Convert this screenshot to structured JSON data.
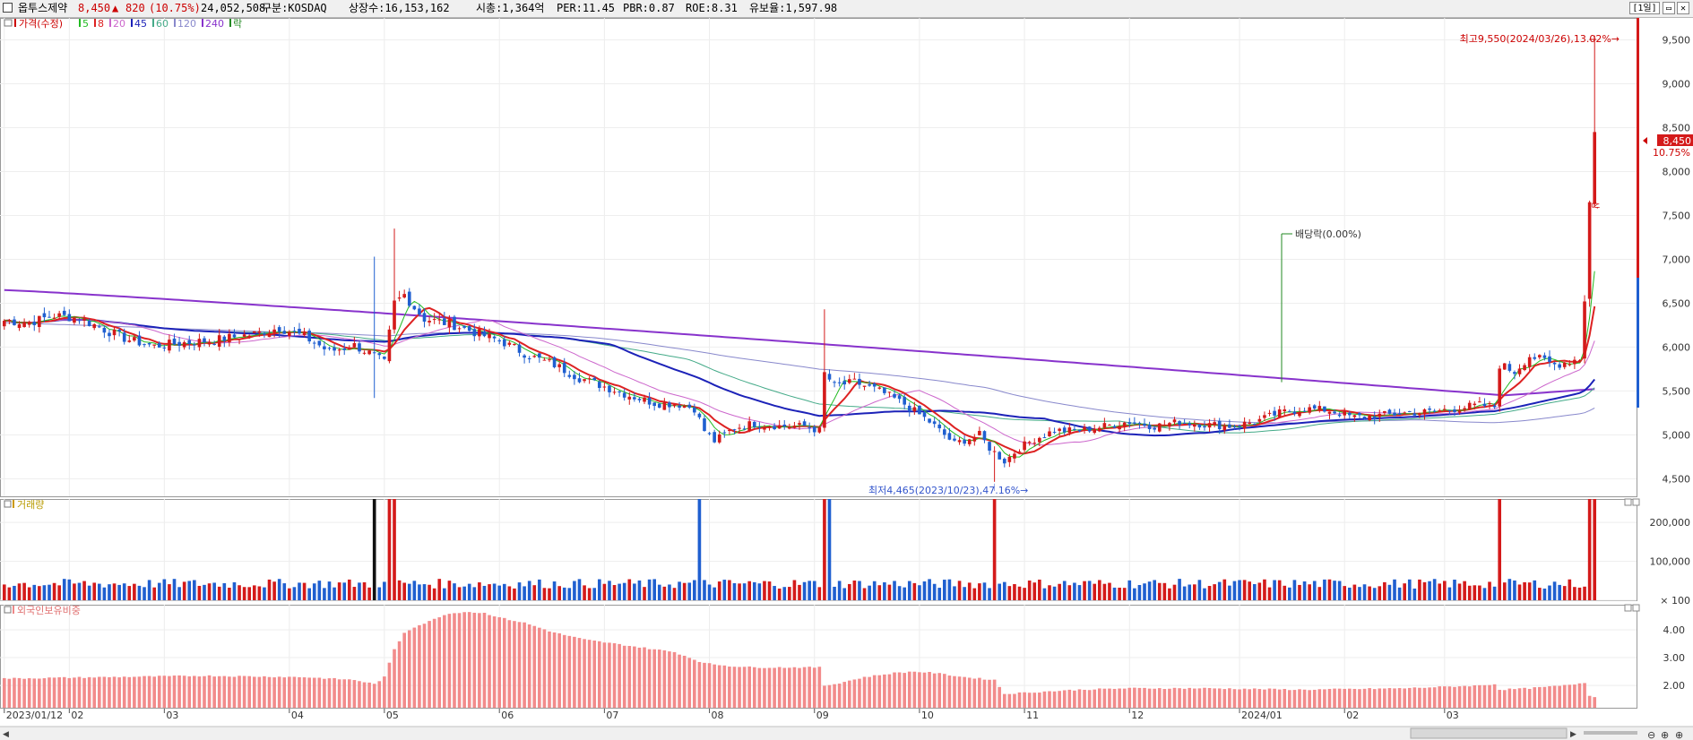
{
  "header": {
    "name": "옵투스제약",
    "price": "8,450",
    "change_symbol": "▲",
    "change": "820",
    "change_pct": "(10.75%)",
    "volume": "24,052,508",
    "market": "구분:KOSDAQ",
    "listed": "상장수:16,153,162",
    "mcap": "시총:1,364억",
    "per": "PER:11.45",
    "pbr": "PBR:0.87",
    "roe": "ROE:8.31",
    "float": "유보율:1,597.98",
    "period": "[1일]"
  },
  "legend": {
    "price_label": "가격(수정)",
    "ma": [
      {
        "label": "5",
        "color": "#22bb22"
      },
      {
        "label": "8",
        "color": "#dd2222"
      },
      {
        "label": "20",
        "color": "#cc66cc"
      },
      {
        "label": "45",
        "color": "#1c22b8"
      },
      {
        "label": "60",
        "color": "#44aa88"
      },
      {
        "label": "120",
        "color": "#8888cc"
      },
      {
        "label": "240",
        "color": "#8833cc"
      }
    ],
    "rak": "락",
    "volume_label": "거래량",
    "foreign_label": "외국인보유비중"
  },
  "annotations": {
    "high": "최고9,550(2024/03/26),13.02%→",
    "low": "최저4,465(2023/10/23),47.16%→",
    "dividend": "배당락(0.00%)",
    "last_price": "8,450",
    "last_pct": "10.75%",
    "sang": "상"
  },
  "colors": {
    "up": "#d41a1a",
    "down": "#1f5fd0",
    "accent": "#cc0000"
  },
  "chart_data": [
    {
      "type": "candlestick",
      "title": "가격(수정)",
      "x_labels": [
        "2023/01/12",
        "02",
        "03",
        "04",
        "05",
        "06",
        "07",
        "08",
        "09",
        "10",
        "11",
        "12",
        "2024/01",
        "02",
        "03"
      ],
      "ylim": [
        4300,
        9750
      ],
      "y_ticks": [
        4500,
        5000,
        5500,
        6000,
        6500,
        7000,
        7500,
        8000,
        8500,
        9000,
        9500
      ],
      "close_anchors": [
        [
          0,
          6300
        ],
        [
          5,
          6280
        ],
        [
          10,
          6360
        ],
        [
          15,
          6330
        ],
        [
          20,
          6200
        ],
        [
          25,
          6080
        ],
        [
          30,
          6010
        ],
        [
          36,
          6050
        ],
        [
          42,
          6080
        ],
        [
          50,
          6150
        ],
        [
          55,
          6220
        ],
        [
          60,
          6120
        ],
        [
          65,
          5950
        ],
        [
          70,
          6020
        ],
        [
          74,
          5900
        ],
        [
          76,
          5820
        ],
        [
          78,
          6500
        ],
        [
          80,
          6600
        ],
        [
          82,
          6450
        ],
        [
          84,
          6320
        ],
        [
          86,
          6300
        ],
        [
          90,
          6250
        ],
        [
          95,
          6150
        ],
        [
          100,
          6050
        ],
        [
          105,
          5900
        ],
        [
          110,
          5800
        ],
        [
          115,
          5650
        ],
        [
          120,
          5550
        ],
        [
          125,
          5450
        ],
        [
          130,
          5360
        ],
        [
          135,
          5350
        ],
        [
          138,
          5300
        ],
        [
          140,
          5050
        ],
        [
          142,
          4930
        ],
        [
          146,
          5080
        ],
        [
          150,
          5130
        ],
        [
          155,
          5100
        ],
        [
          160,
          5100
        ],
        [
          163,
          5050
        ],
        [
          164,
          5700
        ],
        [
          166,
          5560
        ],
        [
          170,
          5600
        ],
        [
          175,
          5500
        ],
        [
          180,
          5350
        ],
        [
          185,
          5150
        ],
        [
          190,
          4900
        ],
        [
          195,
          5000
        ],
        [
          197,
          4850
        ],
        [
          200,
          4700
        ],
        [
          203,
          4850
        ],
        [
          206,
          4950
        ],
        [
          210,
          5050
        ],
        [
          215,
          5050
        ],
        [
          220,
          5100
        ],
        [
          225,
          5150
        ],
        [
          230,
          5100
        ],
        [
          235,
          5150
        ],
        [
          240,
          5120
        ],
        [
          245,
          5100
        ],
        [
          250,
          5150
        ],
        [
          255,
          5250
        ],
        [
          260,
          5300
        ],
        [
          265,
          5280
        ],
        [
          270,
          5200
        ],
        [
          275,
          5220
        ],
        [
          280,
          5250
        ],
        [
          285,
          5260
        ],
        [
          290,
          5300
        ],
        [
          295,
          5340
        ],
        [
          298,
          5320
        ],
        [
          299,
          5800
        ],
        [
          302,
          5720
        ],
        [
          305,
          5900
        ],
        [
          310,
          5800
        ],
        [
          315,
          5870
        ],
        [
          316,
          6520
        ],
        [
          317,
          7650
        ],
        [
          318,
          8450
        ]
      ],
      "series": [
        {
          "name": "5",
          "color": "#22bb22"
        },
        {
          "name": "8",
          "color": "#dd2222"
        },
        {
          "name": "20",
          "color": "#cc66cc"
        },
        {
          "name": "45",
          "color": "#1c22b8"
        },
        {
          "name": "60",
          "color": "#44aa88"
        },
        {
          "name": "120",
          "color": "#8888cc"
        },
        {
          "name": "240",
          "color": "#8833cc"
        }
      ],
      "high": {
        "value": 9550,
        "date": "2024/03/26"
      },
      "low": {
        "value": 4465,
        "date": "2023/10/23"
      },
      "last": 8450
    },
    {
      "type": "bar",
      "title": "거래량",
      "ylim": [
        0,
        260000
      ],
      "y_ticks": [
        100,
        100000,
        200000
      ],
      "spikes": [
        [
          74,
          1300000
        ],
        [
          77,
          600000
        ],
        [
          78,
          400000
        ],
        [
          139,
          600000
        ],
        [
          164,
          1100000
        ],
        [
          165,
          300000
        ],
        [
          198,
          400000
        ],
        [
          299,
          450000
        ],
        [
          317,
          1200000
        ],
        [
          318,
          24052508
        ]
      ]
    },
    {
      "type": "bar",
      "title": "외국인보유비중",
      "ylim": [
        1.2,
        4.9
      ],
      "y_ticks": [
        2.0,
        3.0,
        4.0
      ],
      "anchors": [
        [
          0,
          2.25
        ],
        [
          20,
          2.3
        ],
        [
          40,
          2.35
        ],
        [
          60,
          2.3
        ],
        [
          70,
          2.2
        ],
        [
          74,
          2.05
        ],
        [
          76,
          2.3
        ],
        [
          77,
          2.8
        ],
        [
          78,
          3.3
        ],
        [
          80,
          3.9
        ],
        [
          82,
          4.1
        ],
        [
          85,
          4.3
        ],
        [
          88,
          4.55
        ],
        [
          92,
          4.65
        ],
        [
          96,
          4.6
        ],
        [
          100,
          4.4
        ],
        [
          104,
          4.25
        ],
        [
          110,
          3.9
        ],
        [
          116,
          3.65
        ],
        [
          122,
          3.5
        ],
        [
          128,
          3.35
        ],
        [
          134,
          3.2
        ],
        [
          140,
          2.8
        ],
        [
          145,
          2.7
        ],
        [
          150,
          2.65
        ],
        [
          163,
          2.65
        ],
        [
          164,
          2.0
        ],
        [
          166,
          2.05
        ],
        [
          172,
          2.3
        ],
        [
          178,
          2.45
        ],
        [
          182,
          2.5
        ],
        [
          186,
          2.45
        ],
        [
          192,
          2.3
        ],
        [
          198,
          2.2
        ],
        [
          200,
          1.7
        ],
        [
          205,
          1.75
        ],
        [
          215,
          1.85
        ],
        [
          225,
          1.9
        ],
        [
          240,
          1.9
        ],
        [
          260,
          1.85
        ],
        [
          280,
          1.9
        ],
        [
          295,
          2.0
        ],
        [
          298,
          2.05
        ],
        [
          299,
          1.85
        ],
        [
          305,
          1.9
        ],
        [
          312,
          2.0
        ],
        [
          316,
          2.1
        ],
        [
          317,
          1.65
        ],
        [
          318,
          1.6
        ]
      ]
    }
  ]
}
